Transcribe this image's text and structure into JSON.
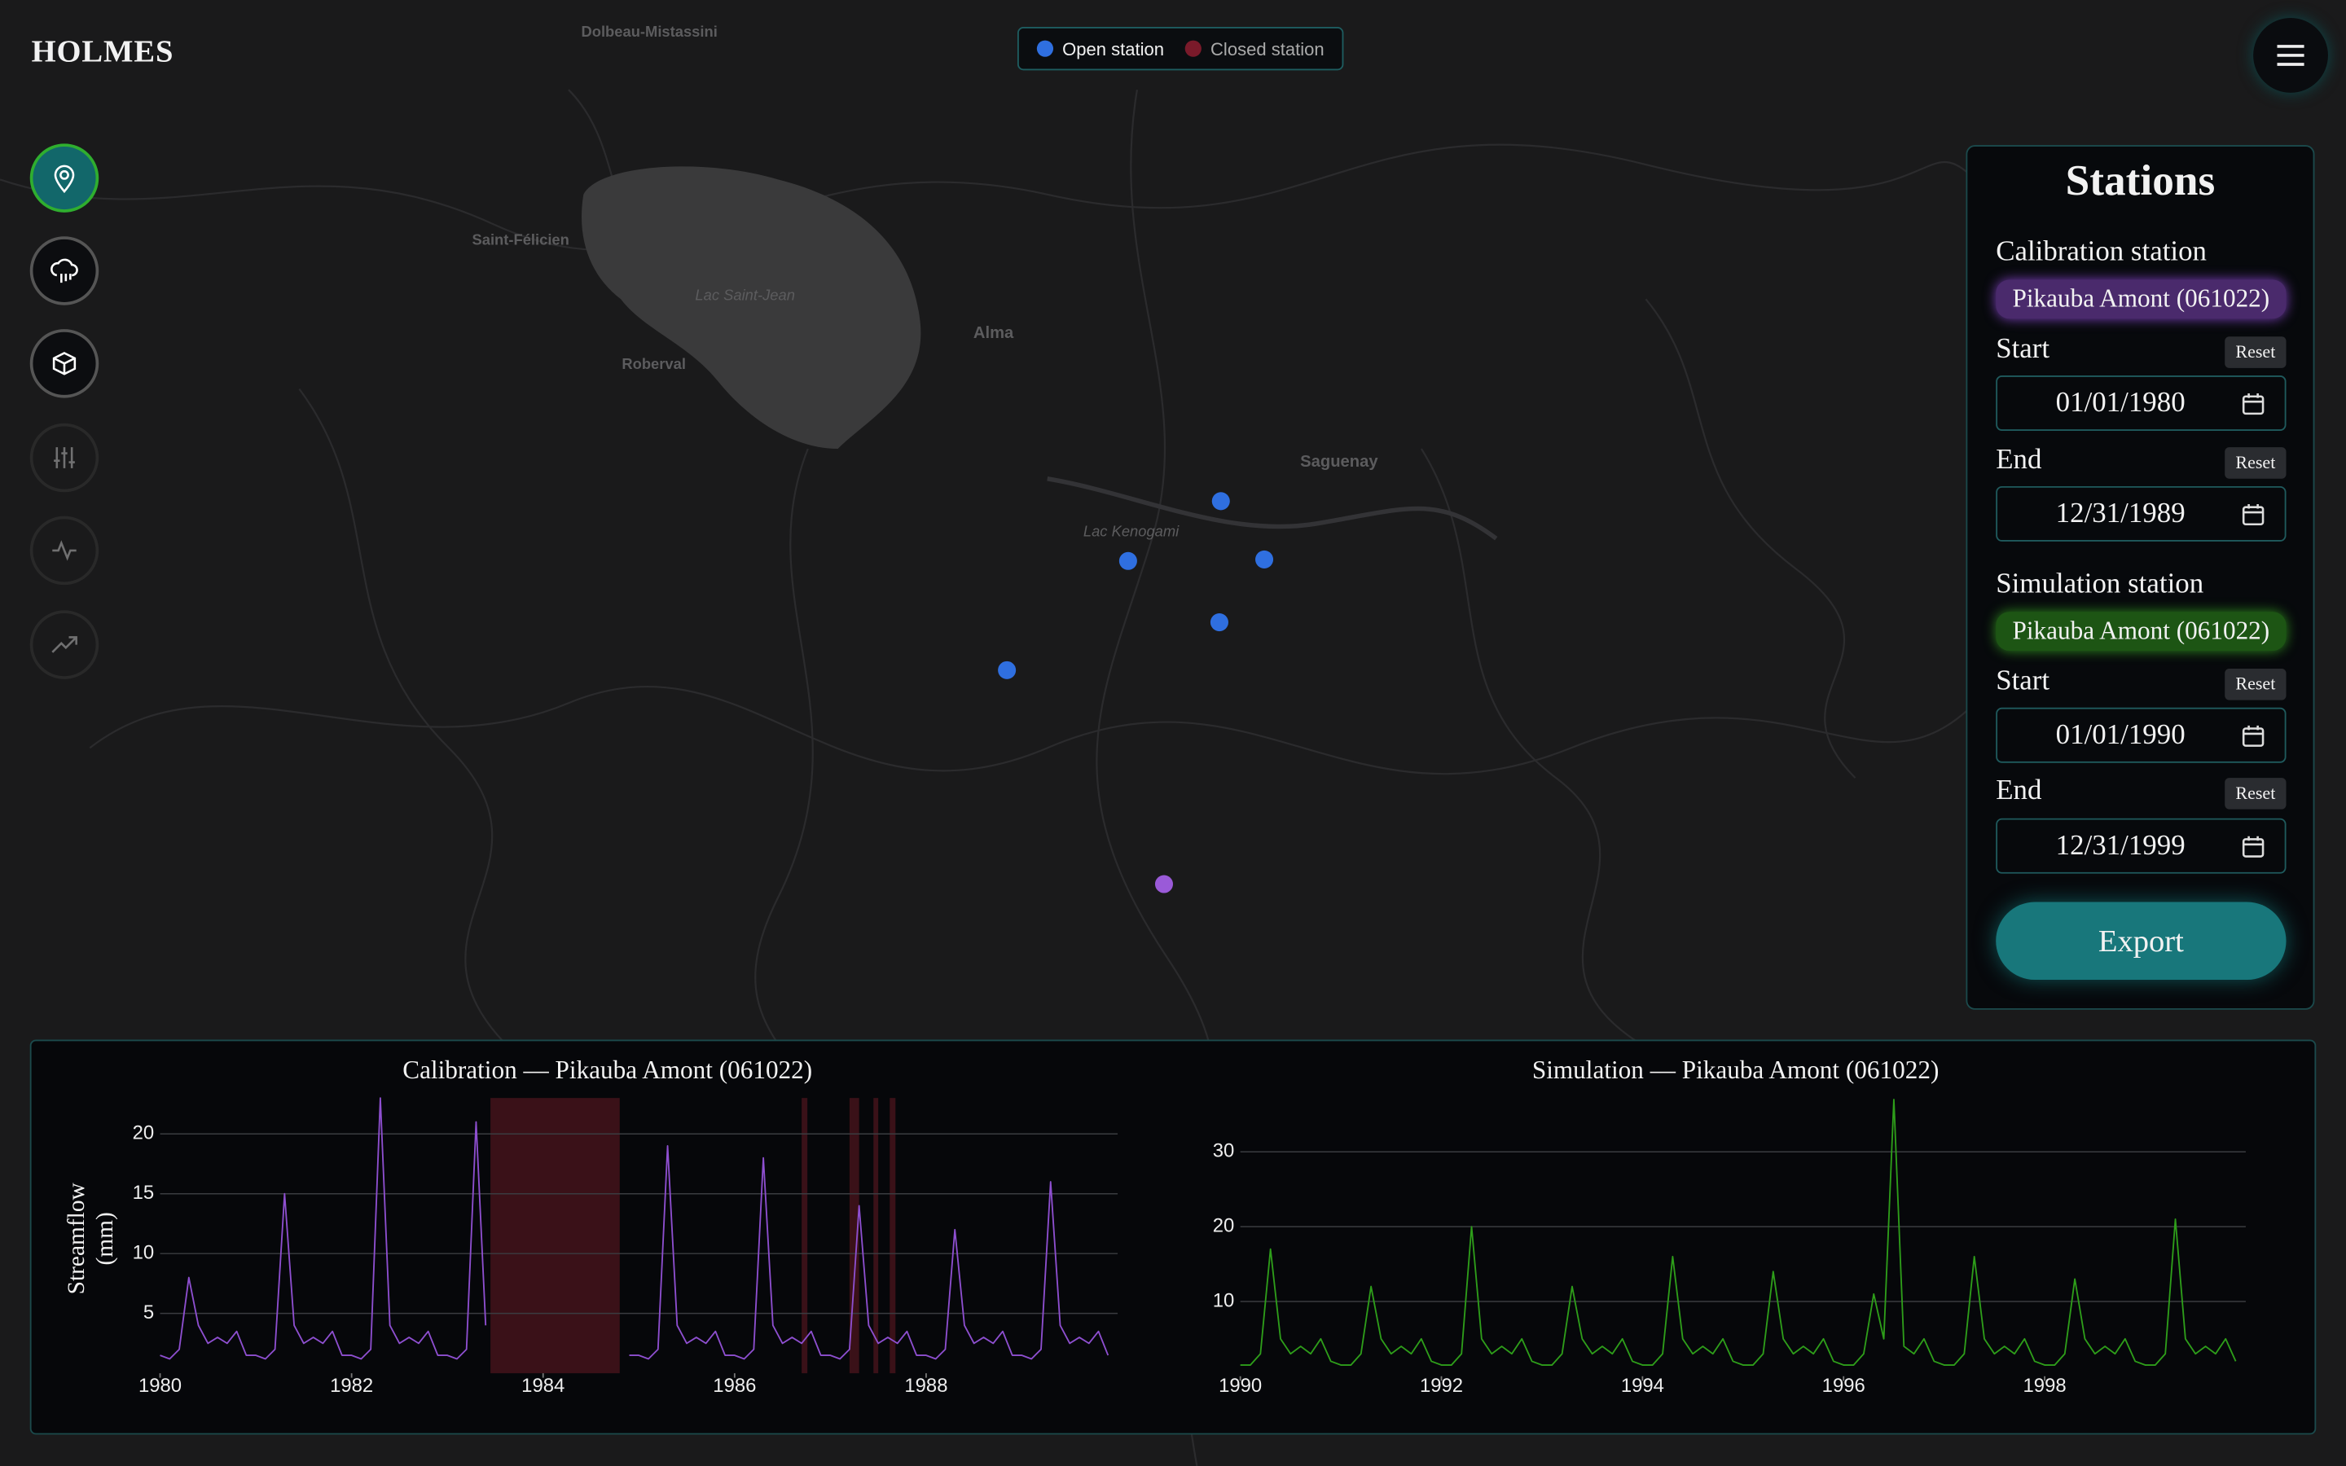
{
  "header": {
    "title": "HOLMES"
  },
  "legend": {
    "items": [
      {
        "label": "Open station",
        "color": "#2f6fe0"
      },
      {
        "label": "Closed station",
        "color": "#7a1a2a"
      }
    ]
  },
  "map": {
    "labels": [
      "Dolbeau-Mistassini",
      "Saint-Félicien",
      "Lac Saint-Jean",
      "Roberval",
      "Alma",
      "Saguenay",
      "Lac Kenogami"
    ]
  },
  "panel": {
    "title": "Stations",
    "calibration": {
      "label": "Calibration station",
      "station": "Pikauba Amont (061022)",
      "start_label": "Start",
      "start": "01/01/1980",
      "end_label": "End",
      "end": "12/31/1989",
      "reset": "Reset"
    },
    "simulation": {
      "label": "Simulation station",
      "station": "Pikauba Amont (061022)",
      "start_label": "Start",
      "start": "01/01/1990",
      "end_label": "End",
      "end": "12/31/1999",
      "reset": "Reset"
    },
    "export": "Export"
  },
  "chart_data": [
    {
      "type": "line",
      "title": "Calibration — Pikauba Amont (061022)",
      "y_label": "Streamflow (mm)",
      "xlim": [
        1980,
        1990
      ],
      "xticks": [
        1980,
        1982,
        1984,
        1986,
        1988
      ],
      "ylim": [
        0,
        23
      ],
      "yticks": [
        5,
        10,
        15,
        20
      ],
      "grid": true,
      "closed_periods": [
        [
          1983.45,
          1984.8
        ],
        [
          1986.7,
          1986.76
        ],
        [
          1987.2,
          1987.3
        ],
        [
          1987.45,
          1987.5
        ],
        [
          1987.62,
          1987.68
        ]
      ],
      "closed_color": "#3a1118",
      "x": [
        1980,
        1980.1,
        1980.2,
        1980.3,
        1980.4,
        1980.5,
        1980.6,
        1980.7,
        1980.8,
        1980.9,
        1981,
        1981.1,
        1981.2,
        1981.3,
        1981.4,
        1981.5,
        1981.6,
        1981.7,
        1981.8,
        1981.9,
        1982,
        1982.1,
        1982.2,
        1982.3,
        1982.4,
        1982.5,
        1982.6,
        1982.7,
        1982.8,
        1982.9,
        1983,
        1983.1,
        1983.2,
        1983.3,
        1983.4,
        1983.5,
        1983.6,
        1983.7,
        1983.8,
        1983.9,
        1984,
        1984.1,
        1984.2,
        1984.3,
        1984.4,
        1984.5,
        1984.6,
        1984.7,
        1984.8,
        1984.9,
        1985,
        1985.1,
        1985.2,
        1985.3,
        1985.4,
        1985.5,
        1985.6,
        1985.7,
        1985.8,
        1985.9,
        1986,
        1986.1,
        1986.2,
        1986.3,
        1986.4,
        1986.5,
        1986.6,
        1986.7,
        1986.8,
        1986.9,
        1987,
        1987.1,
        1987.2,
        1987.3,
        1987.4,
        1987.5,
        1987.6,
        1987.7,
        1987.8,
        1987.9,
        1988,
        1988.1,
        1988.2,
        1988.3,
        1988.4,
        1988.5,
        1988.6,
        1988.7,
        1988.8,
        1988.9,
        1989,
        1989.1,
        1989.2,
        1989.3,
        1989.4,
        1989.5,
        1989.6,
        1989.7,
        1989.8,
        1989.9
      ],
      "series": [
        {
          "name": "Calibration",
          "color": "#8e4fd0",
          "values": [
            1.5,
            1.2,
            2,
            8,
            4,
            2.5,
            3,
            2.5,
            3.5,
            1.5,
            1.5,
            1.2,
            2,
            15,
            4,
            2.5,
            3,
            2.5,
            3.5,
            1.5,
            1.5,
            1.2,
            2,
            23,
            4,
            2.5,
            3,
            2.5,
            3.5,
            1.5,
            1.5,
            1.2,
            2,
            21,
            4,
            null,
            null,
            null,
            null,
            null,
            null,
            null,
            null,
            null,
            null,
            null,
            null,
            null,
            null,
            1.5,
            1.5,
            1.2,
            2,
            19,
            4,
            2.5,
            3,
            2.5,
            3.5,
            1.5,
            1.5,
            1.2,
            2,
            18,
            4,
            2.5,
            3,
            2.5,
            3.5,
            1.5,
            1.5,
            1.2,
            2,
            14,
            4,
            2.5,
            3,
            2.5,
            3.5,
            1.5,
            1.5,
            1.2,
            2,
            12,
            4,
            2.5,
            3,
            2.5,
            3.5,
            1.5,
            1.5,
            1.2,
            2,
            16,
            4,
            2.5,
            3,
            2.5,
            3.5,
            1.5
          ]
        }
      ]
    },
    {
      "type": "line",
      "title": "Simulation — Pikauba Amont (061022)",
      "xlim": [
        1990,
        2000
      ],
      "xticks": [
        1990,
        1992,
        1994,
        1996,
        1998
      ],
      "ylim": [
        0,
        37
      ],
      "yticks": [
        10,
        20,
        30
      ],
      "grid": true,
      "x": [
        1990,
        1990.1,
        1990.2,
        1990.3,
        1990.4,
        1990.5,
        1990.6,
        1990.7,
        1990.8,
        1990.9,
        1991,
        1991.1,
        1991.2,
        1991.3,
        1991.4,
        1991.5,
        1991.6,
        1991.7,
        1991.8,
        1991.9,
        1992,
        1992.1,
        1992.2,
        1992.3,
        1992.4,
        1992.5,
        1992.6,
        1992.7,
        1992.8,
        1992.9,
        1993,
        1993.1,
        1993.2,
        1993.3,
        1993.4,
        1993.5,
        1993.6,
        1993.7,
        1993.8,
        1993.9,
        1994,
        1994.1,
        1994.2,
        1994.3,
        1994.4,
        1994.5,
        1994.6,
        1994.7,
        1994.8,
        1994.9,
        1995,
        1995.1,
        1995.2,
        1995.3,
        1995.4,
        1995.5,
        1995.6,
        1995.7,
        1995.8,
        1995.9,
        1996,
        1996.1,
        1996.2,
        1996.3,
        1996.4,
        1996.5,
        1996.6,
        1996.7,
        1996.8,
        1996.9,
        1997,
        1997.1,
        1997.2,
        1997.3,
        1997.4,
        1997.5,
        1997.6,
        1997.7,
        1997.8,
        1997.9,
        1998,
        1998.1,
        1998.2,
        1998.3,
        1998.4,
        1998.5,
        1998.6,
        1998.7,
        1998.8,
        1998.9,
        1999,
        1999.1,
        1999.2,
        1999.3,
        1999.4,
        1999.5,
        1999.6,
        1999.7,
        1999.8,
        1999.9
      ],
      "series": [
        {
          "name": "Simulation",
          "color": "#2e9e1a",
          "values": [
            1.5,
            1.5,
            3,
            17,
            5,
            3,
            4,
            3,
            5,
            2,
            1.5,
            1.5,
            3,
            12,
            5,
            3,
            4,
            3,
            5,
            2,
            1.5,
            1.5,
            3,
            20,
            5,
            3,
            4,
            3,
            5,
            2,
            1.5,
            1.5,
            3,
            12,
            5,
            3,
            4,
            3,
            5,
            2,
            1.5,
            1.5,
            3,
            16,
            5,
            3,
            4,
            3,
            5,
            2,
            1.5,
            1.5,
            3,
            14,
            5,
            3,
            4,
            3,
            5,
            2,
            1.5,
            1.5,
            3,
            11,
            5,
            37,
            4,
            3,
            5,
            2,
            1.5,
            1.5,
            3,
            16,
            5,
            3,
            4,
            3,
            5,
            2,
            1.5,
            1.5,
            3,
            13,
            5,
            3,
            4,
            3,
            5,
            2,
            1.5,
            1.5,
            3,
            21,
            5,
            3,
            4,
            3,
            5,
            2
          ]
        }
      ]
    }
  ]
}
